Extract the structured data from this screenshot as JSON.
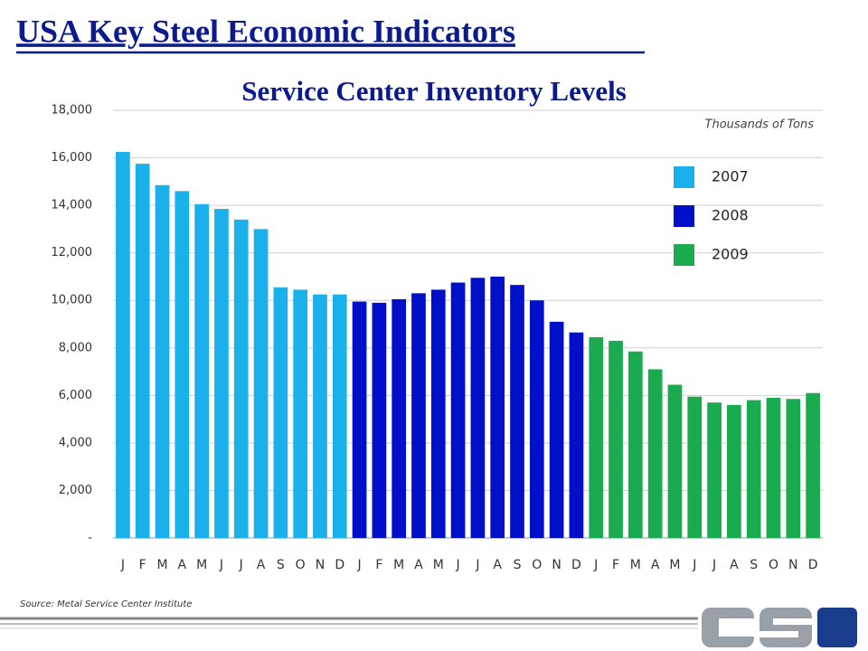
{
  "header": {
    "title": "USA Key Steel Economic Indicators"
  },
  "chart_data": {
    "type": "bar",
    "title": "Service Center Inventory Levels",
    "y_label": "Thousands of Tons",
    "source": "Source: Metal Service Center Institute",
    "categories": [
      "J",
      "F",
      "M",
      "A",
      "M",
      "J",
      "J",
      "A",
      "S",
      "O",
      "N",
      "D",
      "J",
      "F",
      "M",
      "A",
      "M",
      "J",
      "J",
      "A",
      "S",
      "O",
      "N",
      "D",
      "J",
      "F",
      "M",
      "A",
      "M",
      "J",
      "J",
      "A",
      "S",
      "O",
      "N",
      "D"
    ],
    "series": [
      {
        "name": "2007",
        "color": "#1ab0ec",
        "values": [
          16250,
          15750,
          14850,
          14600,
          14050,
          13850,
          13400,
          13000,
          10550,
          10450,
          10250,
          10250,
          null,
          null,
          null,
          null,
          null,
          null,
          null,
          null,
          null,
          null,
          null,
          null,
          null,
          null,
          null,
          null,
          null,
          null,
          null,
          null,
          null,
          null,
          null,
          null
        ]
      },
      {
        "name": "2008",
        "color": "#0010c8",
        "values": [
          null,
          null,
          null,
          null,
          null,
          null,
          null,
          null,
          null,
          null,
          null,
          null,
          9950,
          9900,
          10050,
          10300,
          10450,
          10750,
          10950,
          11000,
          10650,
          10000,
          9100,
          8650,
          null,
          null,
          null,
          null,
          null,
          null,
          null,
          null,
          null,
          null,
          null,
          null
        ]
      },
      {
        "name": "2009",
        "color": "#1aaa50",
        "values": [
          null,
          null,
          null,
          null,
          null,
          null,
          null,
          null,
          null,
          null,
          null,
          null,
          null,
          null,
          null,
          null,
          null,
          null,
          null,
          null,
          null,
          null,
          null,
          null,
          8450,
          8300,
          7850,
          7100,
          6450,
          5950,
          5700,
          5600,
          5800,
          5900,
          5850,
          6100
        ]
      }
    ],
    "ylim": [
      0,
      18000
    ],
    "yticks": [
      {
        "value": 0,
        "label": "-"
      },
      {
        "value": 2000,
        "label": "2,000"
      },
      {
        "value": 4000,
        "label": "4,000"
      },
      {
        "value": 6000,
        "label": "6,000"
      },
      {
        "value": 8000,
        "label": "8,000"
      },
      {
        "value": 10000,
        "label": "10,000"
      },
      {
        "value": 12000,
        "label": "12,000"
      },
      {
        "value": 14000,
        "label": "14,000"
      },
      {
        "value": 16000,
        "label": "16,000"
      },
      {
        "value": 18000,
        "label": "18,000"
      }
    ],
    "grid": true,
    "legend": "upper right"
  }
}
